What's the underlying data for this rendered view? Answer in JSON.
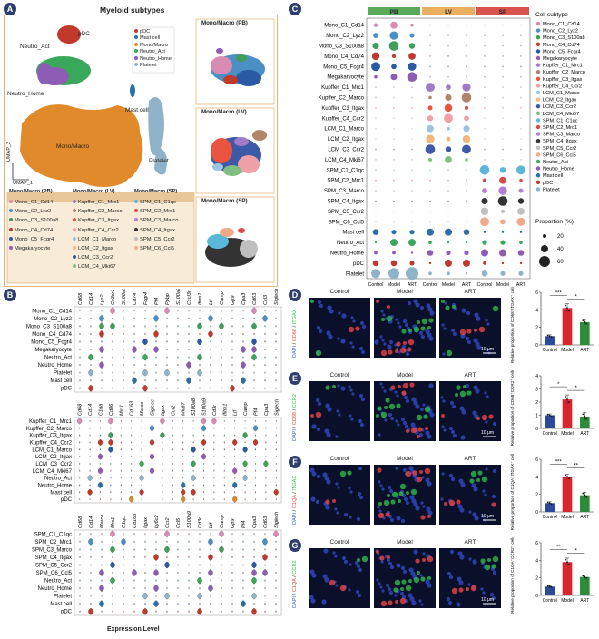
{
  "panel_a": {
    "letter": "A",
    "title": "Myeloid subtypes",
    "legend": [
      {
        "label": "pDC",
        "color": "#c0392b"
      },
      {
        "label": "Mast cell",
        "color": "#2c6fa8"
      },
      {
        "label": "Mono/Macro",
        "color": "#e08a2c"
      },
      {
        "label": "Neutro_Act",
        "color": "#3aa85a"
      },
      {
        "label": "Neutro_Home",
        "color": "#8e5bb5"
      },
      {
        "label": "Platelet",
        "color": "#8fb3c8"
      }
    ],
    "umap_labels": {
      "pdc": "pDC",
      "neutro_act": "Neutro_Act",
      "neutro_home": "Neutro_Home",
      "mast": "Mast cell",
      "mono": "Mono/Macro",
      "platelet": "Platelet"
    },
    "axis_x": "UMAP_1",
    "axis_y": "UMAP_2",
    "table_headers": [
      "Mono/Macro (PB)",
      "Mono/Macro (LV)",
      "Mono/Macro (SP)"
    ],
    "table_cols": [
      [
        {
          "label": "Mono_C1_Cd14",
          "color": "#d98cb3"
        },
        {
          "label": "Mono_C2_Lyz2",
          "color": "#4a90c4"
        },
        {
          "label": "Mono_C3_S100a8",
          "color": "#3f9e57"
        },
        {
          "label": "Mono_C4_Cd74",
          "color": "#c0392b"
        },
        {
          "label": "Mono_C5_Fcgr4",
          "color": "#2a5aa3"
        },
        {
          "label": "Megakaryocyte",
          "color": "#8e5bb5"
        }
      ],
      [
        {
          "label": "Kupffer_C1_Mrc1",
          "color": "#a07bc9"
        },
        {
          "label": "Kupffer_C2_Marco",
          "color": "#b0856a"
        },
        {
          "label": "Kupffer_C3_Itgax",
          "color": "#e8543f"
        },
        {
          "label": "Kupffer_C4_Ccr2",
          "color": "#f0a0a8"
        },
        {
          "label": "LCM_C1_Marco",
          "color": "#9dc3e0"
        },
        {
          "label": "LCM_C2_Itgax",
          "color": "#f2b880"
        },
        {
          "label": "LCM_C3_Ccr2",
          "color": "#3d5aa8"
        },
        {
          "label": "LCM_C4_Mki67",
          "color": "#7fbf7f"
        }
      ],
      [
        {
          "label": "SPM_C1_C1qc",
          "color": "#5bb7d9"
        },
        {
          "label": "SPM_C2_Mrc1",
          "color": "#d94a4a"
        },
        {
          "label": "SPM_C3_Marco",
          "color": "#b07fd0"
        },
        {
          "label": "SPM_C4_Itgax",
          "color": "#333333"
        },
        {
          "label": "SPM_C5_Ccr2",
          "color": "#bfbfbf"
        },
        {
          "label": "SPM_C6_Ccl5",
          "color": "#f2a98a"
        }
      ]
    ],
    "side_titles": [
      "Mono/Macro (PB)",
      "Mono/Macro (LV)",
      "Mono/Macro (SP)"
    ]
  },
  "panel_b": {
    "letter": "B",
    "xlabel": "Expression Level",
    "groups": [
      {
        "genes": [
          "Cd68",
          "Cd14",
          "Lyz2",
          "Cx3cr1",
          "S100a8",
          "Cd74",
          "Fcgr4",
          "Pf4",
          "Ppbp",
          "S100a9",
          "Cxcl3r",
          "Ifitm1",
          "Ltf",
          "Camp",
          "Gp9",
          "Cpa3",
          "Cd63",
          "Ccl3",
          "Siglech"
        ],
        "rows": [
          "Mono_C1_Cd14",
          "Mono_C2_Lyz2",
          "Mono_C3_S100a8",
          "Mono_C4_Cd74",
          "Mono_C5_Fcgr4",
          "Megakaryocyte",
          "Neutro_Act",
          "Neutro_Home",
          "Platelet",
          "Mast cell",
          "pDC"
        ]
      },
      {
        "genes": [
          "Cd68",
          "Cd14",
          "C1qa",
          "Cd86",
          "Mrc1",
          "Cd163",
          "Marco",
          "Siglece",
          "Itgax",
          "Ccr2",
          "Mki67",
          "S100a8",
          "S100a9",
          "Cd3r",
          "Ifitm1",
          "Ltf",
          "Camp",
          "Pf4",
          "Cpa3",
          "Siglech"
        ],
        "rows": [
          "Kupffer_C1_Mrc1",
          "Kupffer_C2_Marco",
          "Kupffer_C3_Itgax",
          "Kupffer_C4_Ccr2",
          "LCM_C1_Marco",
          "LCM_C2_Itgax",
          "LCM_C3_Ccr2",
          "LCM_C4_Mki67",
          "Neutro_Act",
          "Neutro_Home",
          "Mast cell",
          "pDC"
        ]
      },
      {
        "genes": [
          "Cd68",
          "Cd14",
          "Marco",
          "Mrc1",
          "C1qc",
          "Cd163",
          "Itgax",
          "Ly6c2",
          "Ccr2",
          "Ccl5",
          "S100a9",
          "Cd3r",
          "Ltf",
          "Camp",
          "Gp9",
          "Pf4",
          "Cpa3",
          "Cd63",
          "Siglech"
        ],
        "rows": [
          "SPM_C1_C1qc",
          "SPM_C2_Mrc1",
          "SPM_C3_Marco",
          "SPM_C4_Itgax",
          "SPM_C5_Ccr2",
          "SPM_C6_Ccl5",
          "Neutro_Act",
          "Neutro_Home",
          "Platelet",
          "Mast cell",
          "pDC"
        ]
      }
    ]
  },
  "panel_c": {
    "letter": "C",
    "tissues": [
      {
        "label": "PB",
        "color": "#5aa85a"
      },
      {
        "label": "LV",
        "color": "#e8b060"
      },
      {
        "label": "SP",
        "color": "#d9534f"
      }
    ],
    "conditions": [
      "Control",
      "Model",
      "ART"
    ],
    "rows": [
      "Mono_C1_Cd14",
      "Mono_C2_Lyz2",
      "Mono_C3_S100a8",
      "Mono_C4_Cd74",
      "Mono_C5_Fcgr4",
      "Megakaryocyte",
      "Kupffer_C1_Mrc1",
      "Kupffer_C2_Marco",
      "Kupffer_C3_Itgax",
      "Kupffer_C4_Ccr2",
      "LCM_C1_Marco",
      "LCM_C2_Itgax",
      "LCM_C3_Ccr2",
      "LCM_C4_Mki67",
      "SPM_C1_C1qc",
      "SPM_C2_Mrc1",
      "SPM_C3_Marco",
      "SPM_C4_Itgax",
      "SPM_C5_Ccr2",
      "SPM_C6_Ccl5",
      "Mast cell",
      "Neutro_Act",
      "Neutro_Home",
      "pDC",
      "Platelet"
    ],
    "legend_title": "Cell subtype",
    "legend": [
      {
        "label": "Mono_C1_Cd14",
        "color": "#d98cb3"
      },
      {
        "label": "Mono_C2_Lyz2",
        "color": "#4a90c4"
      },
      {
        "label": "Mono_C3_S100a8",
        "color": "#3f9e57"
      },
      {
        "label": "Mono_C4_Cd74",
        "color": "#c0392b"
      },
      {
        "label": "Mono_C5_Fcgr4",
        "color": "#2a5aa3"
      },
      {
        "label": "Megakaryocyte",
        "color": "#8e5bb5"
      },
      {
        "label": "Kupffer_C1_Mrc1",
        "color": "#a07bc9"
      },
      {
        "label": "Kupffer_C2_Marco",
        "color": "#b0856a"
      },
      {
        "label": "Kupffer_C3_Itgax",
        "color": "#e8543f"
      },
      {
        "label": "Kupffer_C4_Ccr2",
        "color": "#f0a0a8"
      },
      {
        "label": "LCM_C1_Marco",
        "color": "#9dc3e0"
      },
      {
        "label": "LCM_C2_Itgax",
        "color": "#f2b880"
      },
      {
        "label": "LCM_C3_Ccr2",
        "color": "#3d5aa8"
      },
      {
        "label": "LCM_C4_Mki67",
        "color": "#7fbf7f"
      },
      {
        "label": "SPM_C1_C1qc",
        "color": "#5bb7d9"
      },
      {
        "label": "SPM_C2_Mrc1",
        "color": "#d94a4a"
      },
      {
        "label": "SPM_C3_Marco",
        "color": "#b07fd0"
      },
      {
        "label": "SPM_C4_Itgax",
        "color": "#333333"
      },
      {
        "label": "SPM_C5_Ccr2",
        "color": "#bfbfbf"
      },
      {
        "label": "SPM_C6_Ccl5",
        "color": "#f2a98a"
      },
      {
        "label": "Neutro_Act",
        "color": "#3aa85a"
      },
      {
        "label": "Neutro_Home",
        "color": "#8e5bb5"
      },
      {
        "label": "Mast cell",
        "color": "#2c6fa8"
      },
      {
        "label": "pDC",
        "color": "#c0392b"
      },
      {
        "label": "Platelet",
        "color": "#8fb3c8"
      }
    ],
    "size_title": "Proportion (%)",
    "size_levels": [
      "20",
      "40",
      "60"
    ]
  },
  "panel_micro": {
    "columns": [
      "Control",
      "Model",
      "ART"
    ],
    "scale_bar": "10 μm",
    "rows": [
      {
        "letter": "D",
        "stain": [
          "DAPI",
          "CD68",
          "ITGAX"
        ],
        "ylabel": "Relative proportion of CD68⁺ITGAX⁺ cells in SP"
      },
      {
        "letter": "E",
        "stain": [
          "DAPI",
          "CD68",
          "CCR2"
        ],
        "ylabel": "Relative proportion of CD68⁺CCR2⁺ cells in SP"
      },
      {
        "letter": "F",
        "stain": [
          "DAPI",
          "C1QA",
          "ITGAX"
        ],
        "ylabel": "Relative proportion of C1QA⁺ITGAX⁺ cells in SP"
      },
      {
        "letter": "G",
        "stain": [
          "DAPI",
          "C1QA",
          "CCR2"
        ],
        "ylabel": "Relative proportion of C1QA⁺CCR2⁺ cells in SP"
      }
    ]
  },
  "chart_data": [
    {
      "type": "bar",
      "panel": "D",
      "categories": [
        "Control",
        "Model",
        "ART"
      ],
      "values": [
        1.0,
        4.2,
        2.6
      ],
      "errors": [
        0.15,
        0.5,
        0.3
      ],
      "ylim": [
        0,
        6
      ],
      "yticks": [
        "0",
        "2",
        "4",
        "6"
      ],
      "sig": [
        {
          "pair": "Control-Model",
          "label": "***"
        },
        {
          "pair": "Model-ART",
          "label": "*"
        }
      ],
      "colors": [
        "#2b4a9a",
        "#d8262d",
        "#2e8b3a"
      ]
    },
    {
      "type": "bar",
      "panel": "E",
      "categories": [
        "Control",
        "Model",
        "ART"
      ],
      "values": [
        1.0,
        2.2,
        0.9
      ],
      "errors": [
        0.1,
        0.35,
        0.3
      ],
      "ylim": [
        0,
        4
      ],
      "yticks": [
        "0",
        "1",
        "2",
        "3",
        "4"
      ],
      "sig": [
        {
          "pair": "Control-Model",
          "label": "*"
        },
        {
          "pair": "Model-ART",
          "label": "*"
        }
      ],
      "colors": [
        "#2b4a9a",
        "#d8262d",
        "#2e8b3a"
      ]
    },
    {
      "type": "bar",
      "panel": "F",
      "categories": [
        "Control",
        "Model",
        "ART"
      ],
      "values": [
        1.0,
        4.0,
        1.9
      ],
      "errors": [
        0.15,
        0.3,
        0.35
      ],
      "ylim": [
        0,
        6
      ],
      "yticks": [
        "0",
        "2",
        "4",
        "6"
      ],
      "sig": [
        {
          "pair": "Control-Model",
          "label": "***"
        },
        {
          "pair": "Model-ART",
          "label": "**"
        }
      ],
      "colors": [
        "#2b4a9a",
        "#d8262d",
        "#2e8b3a"
      ]
    },
    {
      "type": "bar",
      "panel": "G",
      "categories": [
        "Control",
        "Model",
        "ART"
      ],
      "values": [
        1.0,
        3.8,
        2.1
      ],
      "errors": [
        0.1,
        0.45,
        0.2
      ],
      "ylim": [
        0,
        6
      ],
      "yticks": [
        "0",
        "2",
        "4",
        "6"
      ],
      "sig": [
        {
          "pair": "Control-Model",
          "label": "**"
        },
        {
          "pair": "Model-ART",
          "label": "*"
        }
      ],
      "colors": [
        "#2b4a9a",
        "#d8262d",
        "#2e8b3a"
      ]
    }
  ]
}
